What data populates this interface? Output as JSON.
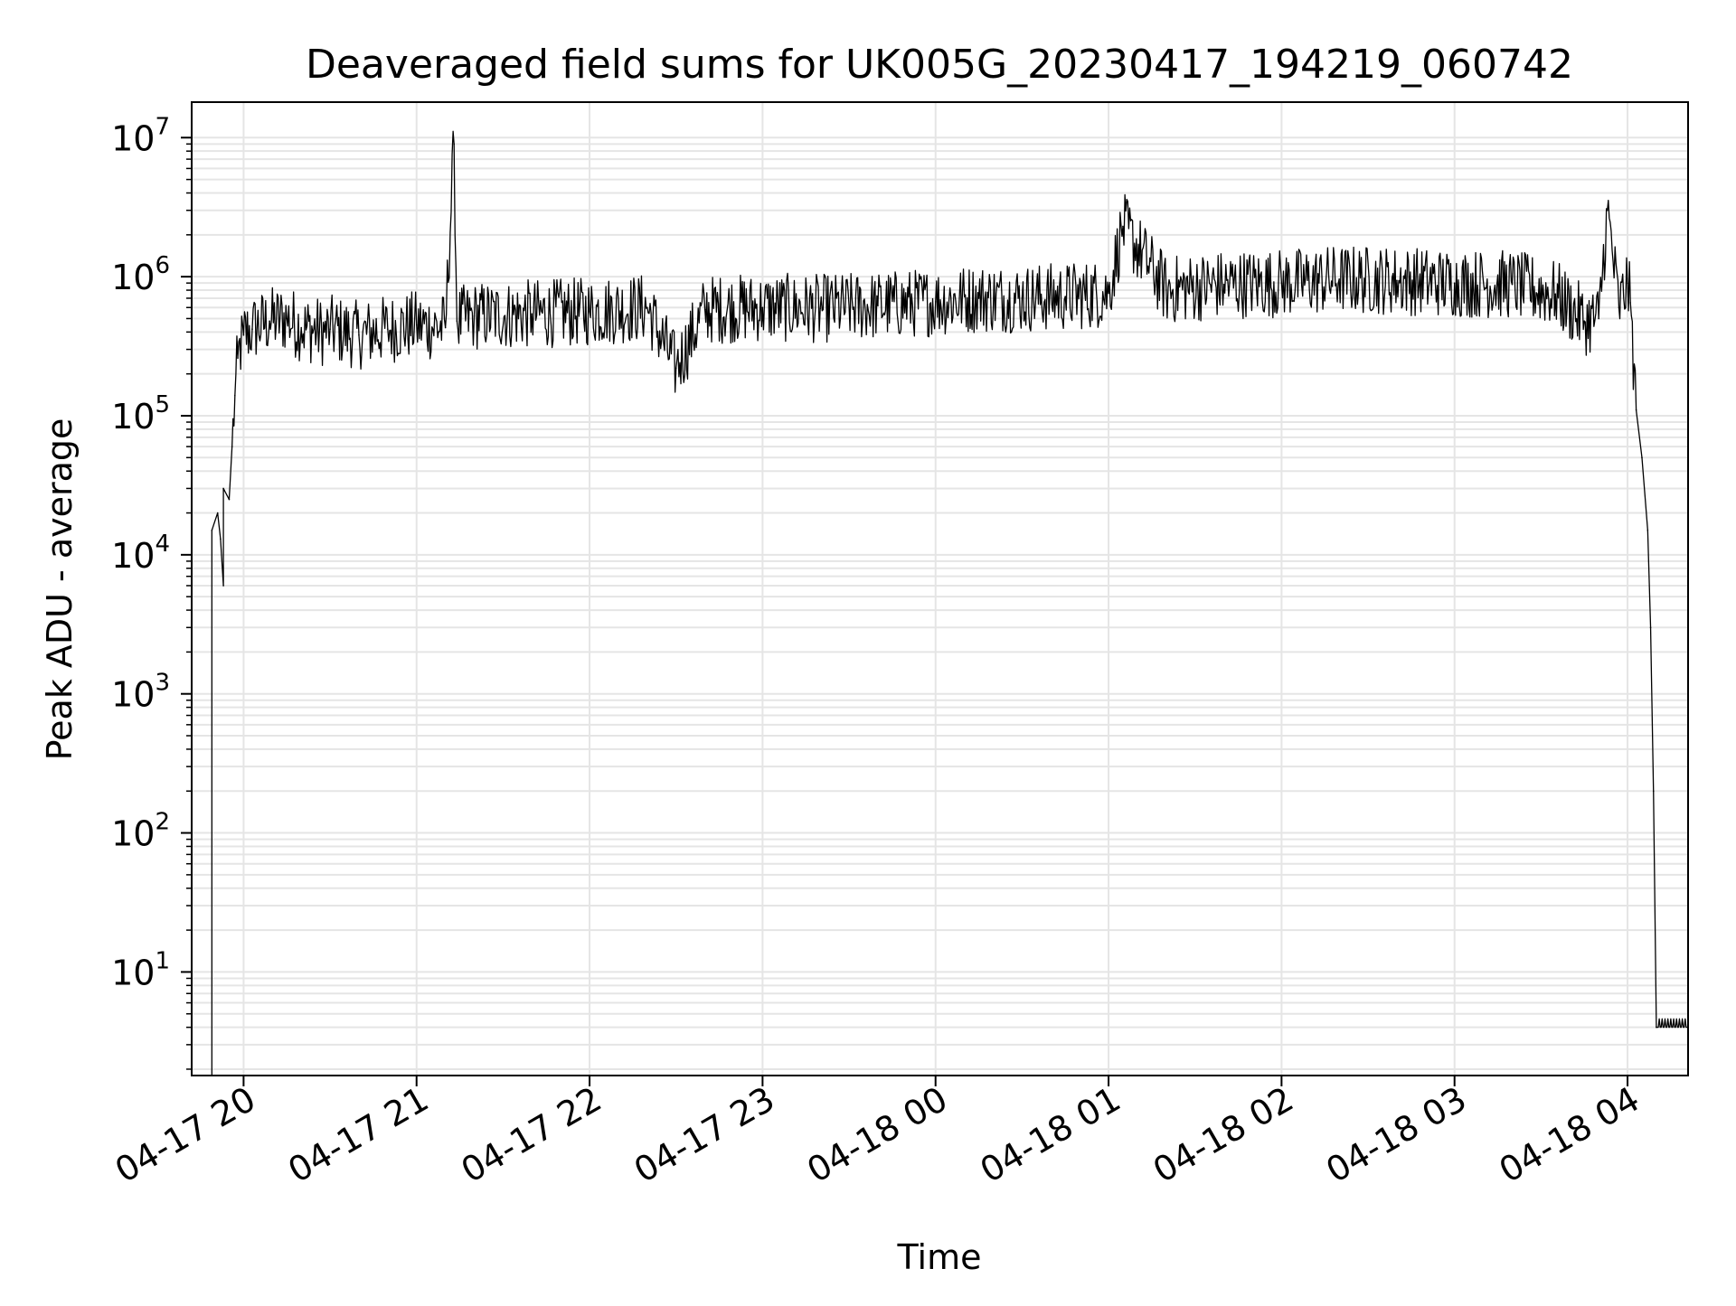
{
  "chart_data": {
    "type": "line",
    "title": "Deaveraged field sums for UK005G_20230417_194219_060742",
    "xlabel": "Time",
    "ylabel": "Peak ADU - average",
    "x_scale": "time",
    "y_scale": "log",
    "xlim": [
      "2023-04-17 19:42",
      "2023-04-18 04:21"
    ],
    "ylim": [
      1.8,
      18000000
    ],
    "grid": true,
    "legend": "none",
    "line_color": "#000000",
    "grid_color": "#e5e5e5",
    "x_ticks": [
      {
        "value": "2023-04-17 20:00",
        "label": "04-17 20"
      },
      {
        "value": "2023-04-17 21:00",
        "label": "04-17 21"
      },
      {
        "value": "2023-04-17 22:00",
        "label": "04-17 22"
      },
      {
        "value": "2023-04-17 23:00",
        "label": "04-17 23"
      },
      {
        "value": "2023-04-18 00:00",
        "label": "04-18 00"
      },
      {
        "value": "2023-04-18 01:00",
        "label": "04-18 01"
      },
      {
        "value": "2023-04-18 02:00",
        "label": "04-18 02"
      },
      {
        "value": "2023-04-18 03:00",
        "label": "04-18 03"
      },
      {
        "value": "2023-04-18 04:00",
        "label": "04-18 04"
      }
    ],
    "y_ticks": [
      {
        "value": 10,
        "base": "10",
        "exp": "1"
      },
      {
        "value": 100,
        "base": "10",
        "exp": "2"
      },
      {
        "value": 1000,
        "base": "10",
        "exp": "3"
      },
      {
        "value": 10000,
        "base": "10",
        "exp": "4"
      },
      {
        "value": 100000,
        "base": "10",
        "exp": "5"
      },
      {
        "value": 1000000,
        "base": "10",
        "exp": "6"
      },
      {
        "value": 10000000,
        "base": "10",
        "exp": "7"
      }
    ],
    "series": [
      {
        "x": [
          "2023-04-17 19:49",
          "2023-04-17 19:49",
          "2023-04-17 19:51",
          "2023-04-17 19:52",
          "2023-04-17 19:53",
          "2023-04-17 19:53",
          "2023-04-17 19:55",
          "2023-04-17 19:56",
          "2023-04-17 19:57",
          "2023-04-17 19:58",
          "2023-04-17 20:00",
          "2023-04-17 20:03",
          "2023-04-17 20:09",
          "2023-04-17 20:15",
          "2023-04-17 20:20",
          "2023-04-17 20:28",
          "2023-04-17 20:30",
          "2023-04-17 20:40",
          "2023-04-17 20:50",
          "2023-04-17 21:00",
          "2023-04-17 21:10",
          "2023-04-17 21:13",
          "2023-04-17 21:14",
          "2023-04-17 21:20",
          "2023-04-17 21:40",
          "2023-04-17 22:00",
          "2023-04-17 22:20",
          "2023-04-17 22:30",
          "2023-04-17 22:40",
          "2023-04-17 23:00",
          "2023-04-17 23:20",
          "2023-04-17 23:40",
          "2023-04-18 00:00",
          "2023-04-18 00:15",
          "2023-04-18 00:30",
          "2023-04-18 00:45",
          "2023-04-18 01:00",
          "2023-04-18 01:05",
          "2023-04-18 01:20",
          "2023-04-18 01:40",
          "2023-04-18 02:00",
          "2023-04-18 02:20",
          "2023-04-18 02:40",
          "2023-04-18 03:00",
          "2023-04-18 03:20",
          "2023-04-18 03:35",
          "2023-04-18 03:45",
          "2023-04-18 03:50",
          "2023-04-18 03:53",
          "2023-04-18 03:57",
          "2023-04-18 04:00",
          "2023-04-18 04:01",
          "2023-04-18 04:03",
          "2023-04-18 04:05",
          "2023-04-18 04:07",
          "2023-04-18 04:08",
          "2023-04-18 04:09",
          "2023-04-18 04:10",
          "2023-04-18 04:21"
        ],
        "y": [
          1.8,
          15000,
          20000,
          13000,
          6000,
          30000,
          25000,
          60000,
          140000,
          260000,
          380000,
          420000,
          480000,
          500000,
          430000,
          400000,
          420000,
          380000,
          420000,
          450000,
          430000,
          9000000,
          480000,
          520000,
          540000,
          560000,
          600000,
          220000,
          580000,
          600000,
          590000,
          620000,
          660000,
          700000,
          700000,
          720000,
          760000,
          2300000,
          800000,
          880000,
          900000,
          960000,
          940000,
          900000,
          880000,
          750000,
          480000,
          500000,
          3000000,
          600000,
          900000,
          650000,
          110000,
          50000,
          15000,
          3000,
          200,
          4,
          4
        ]
      }
    ]
  }
}
